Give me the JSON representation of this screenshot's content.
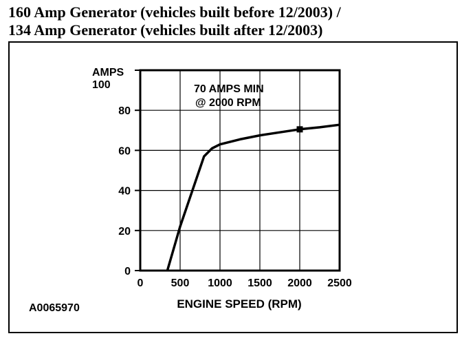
{
  "title_line1": "160 Amp Generator (vehicles built before 12/2003) /",
  "title_line2": "134 Amp Generator (vehicles built after 12/2003)",
  "figure_id": "A0065970",
  "chart_data": {
    "type": "line",
    "title": "",
    "ylabel": "AMPS",
    "xlabel": "ENGINE SPEED (RPM)",
    "xlim": [
      0,
      2500
    ],
    "ylim": [
      0,
      100
    ],
    "x_ticks": [
      0,
      500,
      1000,
      1500,
      2000,
      2500
    ],
    "y_ticks": [
      0,
      20,
      40,
      60,
      80,
      100
    ],
    "grid": true,
    "series": [
      {
        "name": "",
        "x": [
          340,
          500,
          800,
          900,
          1000,
          1250,
          1500,
          1750,
          2000,
          2250,
          2500
        ],
        "y": [
          0,
          22,
          57,
          61,
          63,
          65.5,
          67.5,
          69,
          70.5,
          71.5,
          72.8
        ],
        "color": "#000000"
      }
    ],
    "annotations": [
      {
        "text_lines": [
          "70 AMPS MIN",
          "@ 2000 RPM"
        ],
        "x": 2000,
        "y": 70.5
      }
    ]
  }
}
